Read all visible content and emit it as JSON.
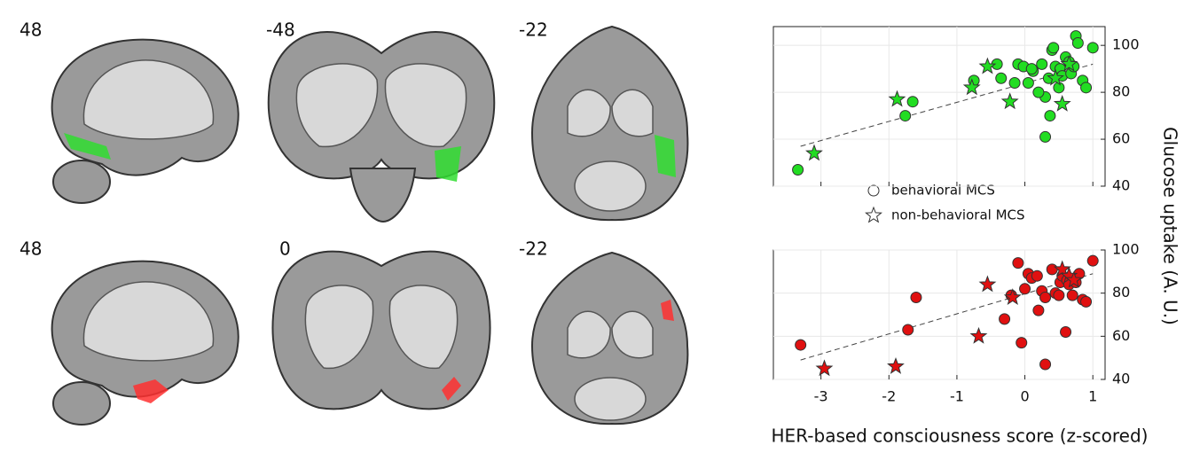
{
  "brain_slices": [
    {
      "label": "48"
    },
    {
      "label": "-48"
    },
    {
      "label": "-22"
    },
    {
      "label": "48"
    },
    {
      "label": "0"
    },
    {
      "label": "-22"
    }
  ],
  "legend": [
    {
      "label": "behavioral MCS",
      "marker": "circle"
    },
    {
      "label": "non-behavioral MCS",
      "marker": "star"
    }
  ],
  "ylabel": "Glucose uptake (A. U.)",
  "xlabel": "HER-based consciousness score (z-scored)",
  "chart_data": [
    {
      "type": "scatter",
      "xlim": [
        -3.7,
        1.18
      ],
      "ylim": [
        40,
        108
      ],
      "xticks": [
        -3,
        -2,
        -1,
        0,
        1
      ],
      "xtick_labels": false,
      "yticks": [
        40,
        60,
        80,
        100
      ],
      "trendline": {
        "x": [
          -3.3,
          1.0
        ],
        "y": [
          57,
          92
        ]
      },
      "series": [
        {
          "marker": "circle",
          "color": "#22dd22",
          "x": [
            -3.34,
            -1.76,
            -1.65,
            -0.75,
            -0.41,
            -0.35,
            -0.15,
            -0.1,
            -0.02,
            0.05,
            0.12,
            0.25,
            0.3,
            0.3,
            0.35,
            0.4,
            0.42,
            0.45,
            0.5,
            0.52,
            0.55,
            0.6,
            0.65,
            0.68,
            0.72,
            0.75,
            0.78,
            0.85,
            0.9,
            1.0,
            0.37,
            0.2,
            0.1
          ],
          "values": [
            47,
            70,
            76,
            85,
            92,
            86,
            84,
            92,
            91,
            84,
            89,
            92,
            78,
            61,
            86,
            98,
            99,
            91,
            82,
            90,
            87,
            95,
            93,
            88,
            91,
            104,
            101,
            85,
            82,
            99,
            70,
            80,
            90
          ]
        },
        {
          "marker": "star",
          "color": "#22dd22",
          "x": [
            -3.1,
            -1.88,
            -0.78,
            -0.55,
            -0.22,
            0.55,
            0.65,
            0.45
          ],
          "values": [
            54,
            77,
            82,
            91,
            76,
            75,
            92,
            86
          ]
        }
      ]
    },
    {
      "type": "scatter",
      "xlim": [
        -3.7,
        1.18
      ],
      "ylim": [
        40,
        100
      ],
      "xticks": [
        -3,
        -2,
        -1,
        0,
        1
      ],
      "xtick_labels": true,
      "yticks": [
        40,
        60,
        80,
        100
      ],
      "trendline": {
        "x": [
          -3.3,
          1.0
        ],
        "y": [
          49,
          89
        ]
      },
      "series": [
        {
          "marker": "circle",
          "color": "#e01010",
          "x": [
            -3.3,
            -1.6,
            -1.72,
            -0.3,
            -0.2,
            -0.1,
            -0.05,
            0,
            0.05,
            0.1,
            0.2,
            0.25,
            0.3,
            0.3,
            0.4,
            0.45,
            0.5,
            0.52,
            0.55,
            0.6,
            0.62,
            0.65,
            0.7,
            0.75,
            0.85,
            0.9,
            1.0,
            0.8,
            0.18
          ],
          "values": [
            56,
            78,
            63,
            68,
            79,
            94,
            57,
            82,
            89,
            87,
            72,
            81,
            47,
            78,
            91,
            80,
            79,
            85,
            88,
            62,
            86,
            84,
            79,
            85,
            77,
            76,
            95,
            89,
            88
          ]
        },
        {
          "marker": "star",
          "color": "#e01010",
          "x": [
            -2.95,
            -1.9,
            -0.68,
            -0.55,
            -0.18,
            0.55,
            0.65,
            0.72
          ],
          "values": [
            45,
            46,
            60,
            84,
            78,
            91,
            88,
            86
          ]
        }
      ]
    }
  ]
}
